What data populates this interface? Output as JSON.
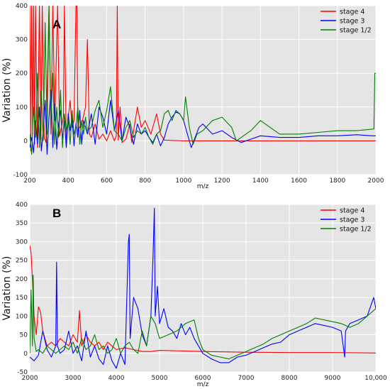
{
  "chart_data": [
    {
      "type": "line",
      "panel_label": "A",
      "xlabel": "m/z",
      "ylabel": "Variation (%)",
      "xlim": [
        200,
        2000
      ],
      "ylim": [
        -100,
        400
      ],
      "xticks": [
        200,
        400,
        600,
        800,
        1000,
        1200,
        1400,
        1600,
        1800,
        2000
      ],
      "yticks": [
        -100,
        0,
        100,
        200,
        300,
        400
      ],
      "grid": true,
      "legend_position": "top-right",
      "series": [
        {
          "name": "stage 4",
          "color": "#ff0000",
          "x": [
            200,
            205,
            210,
            215,
            220,
            225,
            230,
            240,
            250,
            258,
            265,
            275,
            285,
            300,
            310,
            320,
            330,
            345,
            355,
            365,
            375,
            380,
            390,
            400,
            410,
            420,
            430,
            440,
            445,
            450,
            470,
            490,
            500,
            510,
            520,
            540,
            560,
            580,
            600,
            620,
            640,
            650,
            655,
            660,
            670,
            680,
            700,
            720,
            730,
            760,
            780,
            800,
            830,
            860,
            880,
            900,
            950,
            1000,
            1100,
            1200,
            1400,
            1600,
            1800,
            1950,
            2000
          ],
          "y": [
            400,
            -30,
            400,
            20,
            400,
            -10,
            400,
            -20,
            400,
            5,
            400,
            10,
            -5,
            400,
            20,
            400,
            60,
            400,
            15,
            40,
            70,
            400,
            -10,
            70,
            120,
            40,
            60,
            400,
            400,
            30,
            50,
            100,
            300,
            20,
            10,
            50,
            5,
            20,
            0,
            30,
            0,
            15,
            400,
            2,
            100,
            -5,
            5,
            50,
            -5,
            100,
            40,
            60,
            20,
            80,
            20,
            2,
            1,
            0,
            0,
            0,
            0,
            0,
            0,
            0,
            0
          ]
        },
        {
          "name": "stage 3",
          "color": "#0000ff",
          "x": [
            200,
            210,
            220,
            230,
            240,
            250,
            260,
            270,
            280,
            290,
            300,
            310,
            320,
            330,
            340,
            350,
            360,
            370,
            380,
            390,
            400,
            410,
            420,
            430,
            440,
            450,
            460,
            470,
            480,
            490,
            500,
            520,
            540,
            560,
            580,
            600,
            620,
            640,
            660,
            680,
            700,
            720,
            740,
            760,
            780,
            800,
            820,
            840,
            860,
            880,
            900,
            920,
            940,
            960,
            980,
            1000,
            1020,
            1040,
            1060,
            1080,
            1100,
            1150,
            1200,
            1250,
            1300,
            1350,
            1400,
            1500,
            1600,
            1700,
            1800,
            1900,
            1980,
            2000
          ],
          "y": [
            -20,
            10,
            -35,
            60,
            -10,
            100,
            -30,
            30,
            120,
            -40,
            70,
            150,
            -20,
            110,
            -25,
            50,
            90,
            5,
            60,
            -20,
            80,
            30,
            70,
            -15,
            50,
            10,
            90,
            -10,
            60,
            40,
            20,
            80,
            -10,
            100,
            70,
            20,
            120,
            30,
            90,
            0,
            70,
            40,
            -10,
            50,
            20,
            30,
            10,
            -5,
            20,
            -15,
            10,
            50,
            70,
            85,
            80,
            60,
            20,
            -20,
            10,
            40,
            50,
            20,
            30,
            10,
            -5,
            5,
            15,
            10,
            10,
            15,
            15,
            18,
            15,
            15
          ]
        },
        {
          "name": "stage 1/2",
          "color": "#008000",
          "x": [
            200,
            210,
            220,
            230,
            240,
            250,
            260,
            270,
            280,
            290,
            300,
            310,
            320,
            330,
            340,
            350,
            360,
            370,
            380,
            390,
            400,
            410,
            420,
            430,
            440,
            450,
            460,
            470,
            480,
            490,
            500,
            520,
            540,
            560,
            580,
            600,
            620,
            640,
            660,
            680,
            700,
            720,
            740,
            760,
            780,
            800,
            820,
            840,
            860,
            880,
            900,
            920,
            940,
            960,
            980,
            1000,
            1010,
            1030,
            1050,
            1070,
            1100,
            1150,
            1200,
            1250,
            1275,
            1300,
            1350,
            1400,
            1450,
            1500,
            1600,
            1700,
            1800,
            1900,
            1990,
            1995,
            2000
          ],
          "y": [
            20,
            -40,
            100,
            10,
            200,
            -20,
            150,
            0,
            350,
            20,
            400,
            60,
            200,
            -10,
            100,
            10,
            150,
            -20,
            80,
            30,
            60,
            -10,
            90,
            20,
            40,
            100,
            -10,
            60,
            20,
            70,
            30,
            40,
            90,
            120,
            40,
            90,
            160,
            30,
            20,
            0,
            40,
            60,
            10,
            30,
            20,
            40,
            10,
            -10,
            20,
            30,
            80,
            90,
            60,
            90,
            80,
            60,
            130,
            40,
            -10,
            20,
            30,
            60,
            70,
            40,
            0,
            10,
            30,
            60,
            40,
            20,
            20,
            25,
            30,
            30,
            35,
            200,
            200
          ]
        }
      ]
    },
    {
      "type": "line",
      "panel_label": "B",
      "xlabel": "m/z",
      "ylabel": "Variation (%)",
      "xlim": [
        2000,
        10000
      ],
      "ylim": [
        -50,
        400
      ],
      "xticks": [
        2000,
        3000,
        4000,
        5000,
        6000,
        7000,
        8000,
        9000,
        10000
      ],
      "xtick_labels": [
        "2000",
        "3000",
        "4000",
        "5000",
        "6000",
        "7000",
        "8000",
        "9000",
        "10,000"
      ],
      "yticks": [
        -50,
        0,
        50,
        100,
        150,
        200,
        250,
        300,
        350,
        400
      ],
      "grid": true,
      "legend_position": "top-right",
      "series": [
        {
          "name": "stage 4",
          "color": "#ff0000",
          "x": [
            2000,
            2030,
            2060,
            2100,
            2150,
            2200,
            2250,
            2300,
            2350,
            2400,
            2500,
            2600,
            2700,
            2800,
            2900,
            3000,
            3100,
            3150,
            3200,
            3300,
            3400,
            3500,
            3600,
            3700,
            3800,
            3900,
            4000,
            4200,
            4400,
            4600,
            4800,
            5000,
            6000,
            7000,
            8000,
            9000,
            10000
          ],
          "y": [
            290,
            270,
            200,
            100,
            50,
            125,
            110,
            60,
            40,
            20,
            30,
            20,
            40,
            30,
            20,
            50,
            30,
            115,
            20,
            50,
            30,
            20,
            30,
            10,
            30,
            20,
            10,
            15,
            10,
            5,
            5,
            8,
            5,
            3,
            2,
            2,
            1
          ]
        },
        {
          "name": "stage 3",
          "color": "#0000ff",
          "x": [
            2000,
            2100,
            2200,
            2300,
            2400,
            2500,
            2600,
            2620,
            2640,
            2700,
            2800,
            2900,
            3000,
            3100,
            3200,
            3300,
            3400,
            3500,
            3600,
            3700,
            3800,
            3900,
            4000,
            4100,
            4200,
            4280,
            4300,
            4320,
            4400,
            4500,
            4600,
            4700,
            4800,
            4850,
            4880,
            4900,
            4950,
            5000,
            5100,
            5200,
            5300,
            5400,
            5500,
            5600,
            5700,
            5800,
            5900,
            6000,
            6200,
            6400,
            6600,
            6800,
            7000,
            7200,
            7400,
            7600,
            7800,
            8000,
            8200,
            8400,
            8600,
            8800,
            9000,
            9200,
            9280,
            9300,
            9400,
            9600,
            9800,
            9950,
            10000
          ],
          "y": [
            -10,
            -20,
            -5,
            60,
            10,
            -10,
            20,
            245,
            20,
            0,
            10,
            60,
            0,
            20,
            -20,
            60,
            -10,
            20,
            -15,
            -30,
            20,
            -20,
            -40,
            0,
            -30,
            300,
            320,
            40,
            150,
            120,
            50,
            20,
            100,
            260,
            390,
            100,
            180,
            80,
            120,
            70,
            60,
            40,
            80,
            50,
            70,
            40,
            20,
            0,
            -15,
            -25,
            -25,
            -10,
            -5,
            5,
            15,
            25,
            30,
            50,
            60,
            70,
            80,
            75,
            70,
            60,
            -10,
            60,
            80,
            90,
            100,
            150,
            120
          ]
        },
        {
          "name": "stage 1/2",
          "color": "#008000",
          "x": [
            2000,
            2030,
            2060,
            2080,
            2100,
            2150,
            2200,
            2300,
            2400,
            2500,
            2600,
            2700,
            2800,
            2900,
            3000,
            3100,
            3200,
            3300,
            3400,
            3500,
            3600,
            3700,
            3800,
            3900,
            4000,
            4100,
            4200,
            4300,
            4400,
            4500,
            4600,
            4700,
            4800,
            4900,
            5000,
            5200,
            5400,
            5600,
            5800,
            5900,
            6000,
            6200,
            6400,
            6600,
            6800,
            7000,
            7200,
            7400,
            7600,
            7800,
            8000,
            8200,
            8400,
            8600,
            8800,
            9000,
            9200,
            9400,
            9600,
            9800,
            10000
          ],
          "y": [
            0,
            170,
            20,
            210,
            40,
            5,
            10,
            0,
            20,
            10,
            0,
            10,
            20,
            10,
            30,
            0,
            40,
            10,
            20,
            50,
            10,
            20,
            0,
            10,
            40,
            0,
            20,
            30,
            10,
            0,
            60,
            20,
            100,
            80,
            40,
            50,
            60,
            80,
            90,
            40,
            10,
            -5,
            -10,
            -15,
            -5,
            5,
            15,
            25,
            40,
            50,
            60,
            70,
            80,
            95,
            90,
            85,
            80,
            70,
            80,
            100,
            120
          ]
        }
      ]
    }
  ]
}
